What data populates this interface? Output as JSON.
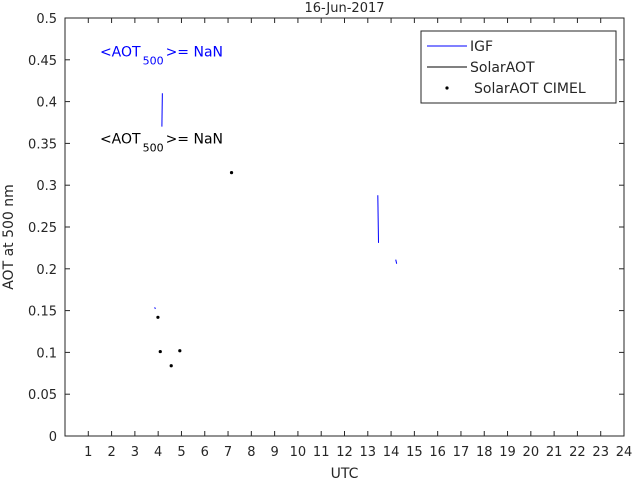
{
  "chart_data": {
    "type": "line",
    "title": "16-Jun-2017",
    "xlabel": "UTC",
    "ylabel": "AOT at 500 nm",
    "xlim": [
      0,
      24
    ],
    "ylim": [
      0,
      0.5
    ],
    "xticks": [
      1,
      2,
      3,
      4,
      5,
      6,
      7,
      8,
      9,
      10,
      11,
      12,
      13,
      14,
      15,
      16,
      17,
      18,
      19,
      20,
      21,
      22,
      23,
      24
    ],
    "yticks": [
      0,
      0.05,
      0.1,
      0.15,
      0.2,
      0.25,
      0.3,
      0.35,
      0.4,
      0.45,
      0.5
    ],
    "grid": false,
    "legend_position": "top-right",
    "series": [
      {
        "name": "IGF",
        "color": "#0000ff",
        "style": "line",
        "segments": [
          [
            [
              4.18,
              0.41
            ],
            [
              4.16,
              0.37
            ]
          ],
          [
            [
              3.85,
              0.154
            ],
            [
              3.88,
              0.152
            ]
          ],
          [
            [
              13.43,
              0.288
            ],
            [
              13.46,
              0.231
            ]
          ],
          [
            [
              14.2,
              0.211
            ],
            [
              14.24,
              0.206
            ]
          ]
        ]
      },
      {
        "name": "SolarAOT",
        "color": "#000000",
        "style": "line",
        "segments": []
      },
      {
        "name": "SolarAOT CIMEL",
        "color": "#000000",
        "style": "marker",
        "x": [
          3.99,
          4.09,
          4.56,
          4.93,
          7.15
        ],
        "y": [
          0.142,
          0.101,
          0.084,
          0.102,
          0.315
        ]
      }
    ],
    "annotations": [
      {
        "color": "#0000ff",
        "prefix": "<AOT",
        "subscript": "500",
        "suffix": ">=  NaN",
        "x": 1.5,
        "y": 0.46
      },
      {
        "color": "#000000",
        "prefix": "<AOT",
        "subscript": "500",
        "suffix": ">=  NaN",
        "x": 1.5,
        "y": 0.356
      }
    ]
  }
}
